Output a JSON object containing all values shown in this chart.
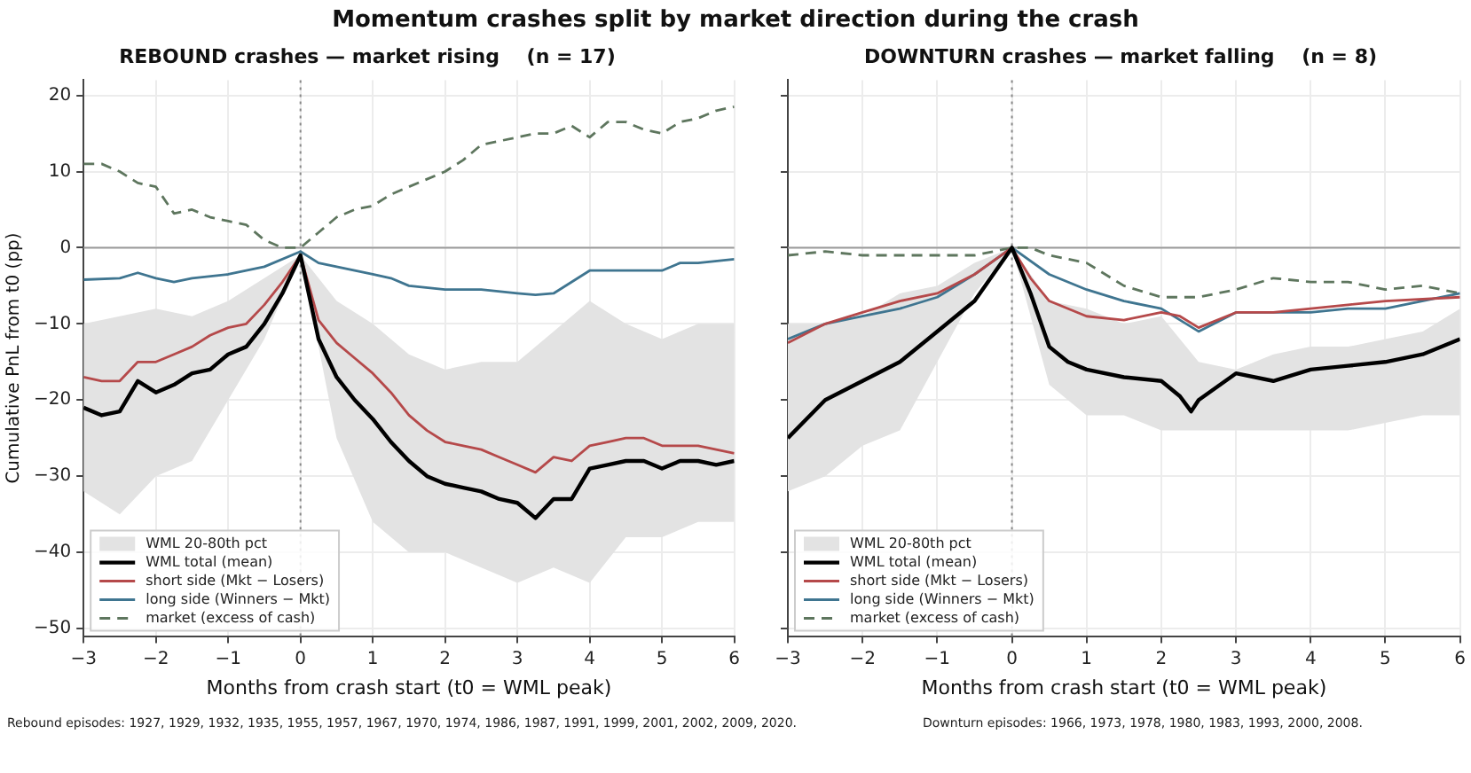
{
  "chart_data": [
    {
      "type": "line",
      "title": "Momentum crashes split by market direction during the crash",
      "subtitle": "REBOUND crashes — market rising    (n = 17)",
      "xlabel": "Months from crash start (t0 = WML peak)",
      "ylabel": "Cumulative PnL from t0 (pp)",
      "xlim": [
        -3,
        6
      ],
      "ylim": [
        -51,
        22
      ],
      "xticks": [
        {
          "value": -3,
          "label": "−3"
        },
        {
          "value": -2,
          "label": "−2"
        },
        {
          "value": -1,
          "label": "−1"
        },
        0,
        1,
        2,
        3,
        4,
        5,
        6
      ],
      "yticks": [
        {
          "value": -50,
          "label": "−50"
        },
        {
          "value": -40,
          "label": "−40"
        },
        {
          "value": -30,
          "label": "−30"
        },
        {
          "value": -20,
          "label": "−20"
        },
        {
          "value": -10,
          "label": "−10"
        },
        0,
        10,
        20
      ],
      "grid": true,
      "legend": "bottom left",
      "ref_lines": [
        {
          "axis": "y",
          "value": 0,
          "color": "#999999",
          "line_style": "solid"
        },
        {
          "axis": "x",
          "value": 0,
          "color": "#888888",
          "line_style": "dotted"
        }
      ],
      "series": [
        {
          "name": "WML 20-80th pct",
          "type": "area",
          "color": "#e3e3e3",
          "x": [
            -3,
            -2.5,
            -2,
            -1.5,
            -1,
            -0.5,
            0,
            0.5,
            1,
            1.5,
            2,
            2.5,
            3,
            3.5,
            4,
            4.5,
            5,
            5.5,
            6
          ],
          "values": [
            null,
            null,
            null,
            null,
            null,
            null,
            null,
            null,
            null,
            null,
            null,
            null,
            null,
            null,
            null,
            null,
            null,
            null,
            null
          ],
          "lower": [
            -32,
            -35,
            -30,
            -28,
            -20,
            -12,
            -1,
            -25,
            -36,
            -40,
            -40,
            -42,
            -44,
            -42,
            -44,
            -38,
            -38,
            -36,
            -36
          ],
          "upper": [
            -10,
            -9,
            -8,
            -9,
            -7,
            -4,
            -1,
            -7,
            -10,
            -14,
            -16,
            -15,
            -15,
            -11,
            -7,
            -10,
            -12,
            -10,
            -10
          ]
        },
        {
          "name": "WML total (mean)",
          "type": "line",
          "color": "#000000",
          "x": [
            -3,
            -2.75,
            -2.5,
            -2.25,
            -2,
            -1.75,
            -1.5,
            -1.25,
            -1,
            -0.75,
            -0.5,
            -0.25,
            0,
            0.25,
            0.5,
            0.75,
            1,
            1.25,
            1.5,
            1.75,
            2,
            2.25,
            2.5,
            2.75,
            3,
            3.25,
            3.5,
            3.75,
            4,
            4.25,
            4.5,
            4.75,
            5,
            5.25,
            5.5,
            5.75,
            6
          ],
          "values": [
            -21,
            -22,
            -21.5,
            -17.5,
            -19,
            -18,
            -16.5,
            -16,
            -14,
            -13,
            -10,
            -6,
            -1,
            -12,
            -17,
            -20,
            -22.5,
            -25.5,
            -28,
            -30,
            -31,
            -31.5,
            -32,
            -33,
            -33.5,
            -35.5,
            -33,
            -33,
            -29,
            -28.5,
            -28,
            -28,
            -29,
            -28,
            -28,
            -28.5,
            -28
          ]
        },
        {
          "name": "short side (Mkt − Losers)",
          "type": "line",
          "color": "#b5494a",
          "x": [
            -3,
            -2.75,
            -2.5,
            -2.25,
            -2,
            -1.75,
            -1.5,
            -1.25,
            -1,
            -0.75,
            -0.5,
            -0.25,
            0,
            0.25,
            0.5,
            0.75,
            1,
            1.25,
            1.5,
            1.75,
            2,
            2.25,
            2.5,
            2.75,
            3,
            3.25,
            3.5,
            3.75,
            4,
            4.25,
            4.5,
            4.75,
            5,
            5.25,
            5.5,
            5.75,
            6
          ],
          "values": [
            -17,
            -17.5,
            -17.5,
            -15,
            -15,
            -14,
            -13,
            -11.5,
            -10.5,
            -10,
            -7.5,
            -4.5,
            -1,
            -9.5,
            -12.5,
            -14.5,
            -16.5,
            -19,
            -22,
            -24,
            -25.5,
            -26,
            -26.5,
            -27.5,
            -28.5,
            -29.5,
            -27.5,
            -28,
            -26,
            -25.5,
            -25,
            -25,
            -26,
            -26,
            -26,
            -26.5,
            -27
          ]
        },
        {
          "name": "long side (Winners − Mkt)",
          "type": "line",
          "color": "#3f7590",
          "x": [
            -3,
            -2.5,
            -2.25,
            -2,
            -1.75,
            -1.5,
            -1,
            -0.5,
            0,
            0.25,
            0.5,
            0.75,
            1,
            1.25,
            1.5,
            2,
            2.5,
            3,
            3.25,
            3.5,
            4,
            4.5,
            5,
            5.25,
            5.5,
            6
          ],
          "values": [
            -4.2,
            -4,
            -3.3,
            -4,
            -4.5,
            -4,
            -3.5,
            -2.5,
            -0.5,
            -2,
            -2.5,
            -3,
            -3.5,
            -4,
            -5,
            -5.5,
            -5.5,
            -6,
            -6.2,
            -6,
            -3,
            -3,
            -3,
            -2,
            -2,
            -1.5
          ]
        },
        {
          "name": "market (excess of cash)",
          "type": "line",
          "color": "#5e765e",
          "line_style": "dashed",
          "x": [
            -3,
            -2.75,
            -2.5,
            -2.25,
            -2,
            -1.75,
            -1.5,
            -1.25,
            -1,
            -0.75,
            -0.5,
            -0.25,
            0,
            0.25,
            0.5,
            0.75,
            1,
            1.25,
            1.5,
            1.75,
            2,
            2.25,
            2.5,
            2.75,
            3,
            3.25,
            3.5,
            3.75,
            4,
            4.25,
            4.5,
            4.75,
            5,
            5.25,
            5.5,
            5.75,
            6
          ],
          "values": [
            11,
            11,
            10,
            8.5,
            8,
            4.5,
            5,
            4,
            3.5,
            3,
            1,
            0,
            0,
            2,
            4,
            5,
            5.5,
            7,
            8,
            9,
            10,
            11.5,
            13.5,
            14,
            14.5,
            15,
            15,
            16,
            14.5,
            16.5,
            16.5,
            15.5,
            15,
            16.5,
            17,
            18,
            18.5
          ]
        }
      ],
      "annotations": [
        "Rebound episodes: 1927, 1929, 1932, 1935, 1955, 1957, 1967, 1970, 1974, 1986, 1987, 1991, 1999, 2001, 2002, 2009, 2020."
      ]
    },
    {
      "type": "line",
      "subtitle": "DOWNTURN crashes — market falling    (n = 8)",
      "xlabel": "Months from crash start (t0 = WML peak)",
      "xlim": [
        -3,
        6
      ],
      "ylim": [
        -51,
        22
      ],
      "xticks": [
        {
          "value": -3,
          "label": "−3"
        },
        {
          "value": -2,
          "label": "−2"
        },
        {
          "value": -1,
          "label": "−1"
        },
        0,
        1,
        2,
        3,
        4,
        5,
        6
      ],
      "yticks": [
        -50,
        -40,
        -30,
        -20,
        -10,
        0,
        10,
        20
      ],
      "tick_labels": "x",
      "grid": true,
      "legend": "bottom left",
      "ref_lines": [
        {
          "axis": "y",
          "value": 0,
          "color": "#999999",
          "line_style": "solid"
        },
        {
          "axis": "x",
          "value": 0,
          "color": "#888888",
          "line_style": "dotted"
        }
      ],
      "series": [
        {
          "name": "WML 20-80th pct",
          "type": "area",
          "color": "#e3e3e3",
          "x": [
            -3,
            -2.5,
            -2,
            -1.5,
            -1,
            -0.5,
            0,
            0.5,
            1,
            1.5,
            2,
            2.5,
            3,
            3.5,
            4,
            4.5,
            5,
            5.5,
            6
          ],
          "values": [
            null,
            null,
            null,
            null,
            null,
            null,
            null,
            null,
            null,
            null,
            null,
            null,
            null,
            null,
            null,
            null,
            null,
            null,
            null
          ],
          "lower": [
            -32,
            -30,
            -26,
            -24,
            -15,
            -6,
            0,
            -18,
            -22,
            -22,
            -24,
            -24,
            -24,
            -24,
            -24,
            -24,
            -23,
            -22,
            -22
          ],
          "upper": [
            -10,
            -10,
            -9,
            -6,
            -5,
            -2,
            0,
            -7,
            -8,
            -10,
            -9,
            -15,
            -16,
            -14,
            -13,
            -13,
            -12,
            -11,
            -8
          ]
        },
        {
          "name": "WML total (mean)",
          "type": "line",
          "color": "#000000",
          "x": [
            -3,
            -2.5,
            -2,
            -1.5,
            -1,
            -0.5,
            0,
            0.25,
            0.5,
            0.75,
            1,
            1.5,
            2,
            2.25,
            2.4,
            2.5,
            3,
            3.5,
            4,
            4.5,
            5,
            5.5,
            6
          ],
          "values": [
            -25,
            -20,
            -17.5,
            -15,
            -11,
            -7,
            0,
            -6,
            -13,
            -15,
            -16,
            -17,
            -17.5,
            -19.5,
            -21.5,
            -20,
            -16.5,
            -17.5,
            -16,
            -15.5,
            -15,
            -14,
            -12
          ]
        },
        {
          "name": "short side (Mkt − Losers)",
          "type": "line",
          "color": "#b5494a",
          "x": [
            -3,
            -2.5,
            -2,
            -1.5,
            -1,
            -0.5,
            0,
            0.25,
            0.5,
            1,
            1.5,
            2,
            2.25,
            2.5,
            3,
            3.5,
            4,
            4.5,
            5,
            6
          ],
          "values": [
            -12.5,
            -10,
            -8.5,
            -7,
            -6,
            -3.5,
            0,
            -4,
            -7,
            -9,
            -9.5,
            -8.5,
            -9,
            -10.5,
            -8.5,
            -8.5,
            -8,
            -7.5,
            -7,
            -6.5
          ]
        },
        {
          "name": "long side (Winners − Mkt)",
          "type": "line",
          "color": "#3f7590",
          "x": [
            -3,
            -2.5,
            -2,
            -1.5,
            -1,
            -0.5,
            0,
            0.5,
            1,
            1.5,
            2,
            2.5,
            3,
            3.5,
            4,
            4.5,
            5,
            6
          ],
          "values": [
            -12,
            -10,
            -9,
            -8,
            -6.5,
            -3.5,
            0,
            -3.5,
            -5.5,
            -7,
            -8,
            -11,
            -8.5,
            -8.5,
            -8.5,
            -8,
            -8,
            -6
          ]
        },
        {
          "name": "market (excess of cash)",
          "type": "line",
          "color": "#5e765e",
          "line_style": "dashed",
          "x": [
            -3,
            -2.5,
            -2,
            -1.5,
            -1,
            -0.5,
            0,
            0.25,
            0.5,
            1,
            1.5,
            2,
            2.5,
            3,
            3.5,
            4,
            4.5,
            5,
            5.5,
            6
          ],
          "values": [
            -1,
            -0.5,
            -1,
            -1,
            -1,
            -1,
            0,
            0,
            -1,
            -2,
            -5,
            -6.5,
            -6.5,
            -5.5,
            -4,
            -4.5,
            -4.5,
            -5.5,
            -5,
            -6
          ]
        }
      ],
      "annotations": [
        "Downturn episodes: 1966, 1973, 1978, 1980, 1983, 1993, 2000, 2008."
      ]
    }
  ]
}
